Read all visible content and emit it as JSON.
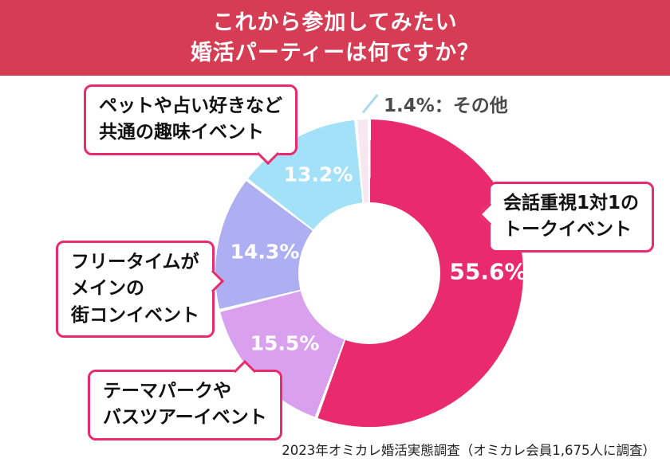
{
  "header": {
    "title_line1": "これから参加してみたい",
    "title_line2": "婚活パーティーは何ですか？",
    "bg_color": "#d63d55"
  },
  "chart_data": {
    "type": "pie",
    "donut": true,
    "title": "これから参加してみたい婚活パーティーは何ですか？",
    "start_angle_deg": 0,
    "direction": "clockwise",
    "segments": [
      {
        "label": "会話重視1対1のトークイベント",
        "value": 55.6,
        "pct_label": "55.6%",
        "color": "#e92a6d"
      },
      {
        "label": "テーマパークやバスツアーイベント",
        "value": 15.5,
        "pct_label": "15.5%",
        "color": "#d9a0ee"
      },
      {
        "label": "フリータイムがメインの街コンイベント",
        "value": 14.3,
        "pct_label": "14.3%",
        "color": "#aeaef2"
      },
      {
        "label": "ペットや占い好きなど共通の趣味イベント",
        "value": 13.2,
        "pct_label": "13.2%",
        "color": "#a3e1f8"
      },
      {
        "label": "その他",
        "value": 1.4,
        "pct_label": "1.4%",
        "color": "#f6e8ee"
      }
    ],
    "legend_position": "callouts",
    "grid": false
  },
  "callouts": {
    "pet": {
      "line1": "ペットや占い好きなど",
      "line2": "共通の趣味イベント"
    },
    "talk": {
      "line1": "会話重視1対1の",
      "line2": "トークイベント"
    },
    "free": {
      "line1": "フリータイムが",
      "line2": "メインの",
      "line3": "街コンイベント"
    },
    "theme": {
      "line1": "テーマパークや",
      "line2": "バスツアーイベント"
    },
    "other": {
      "text": "1.4%：その他"
    }
  },
  "footer": {
    "source": "2023年オミカレ婚活実態調査（オミカレ会員1,675人に調査）"
  },
  "colors": {
    "header_red": "#d63d55",
    "accent_pink": "#e92a6d",
    "leader_line_blue": "#a9d9ec"
  }
}
